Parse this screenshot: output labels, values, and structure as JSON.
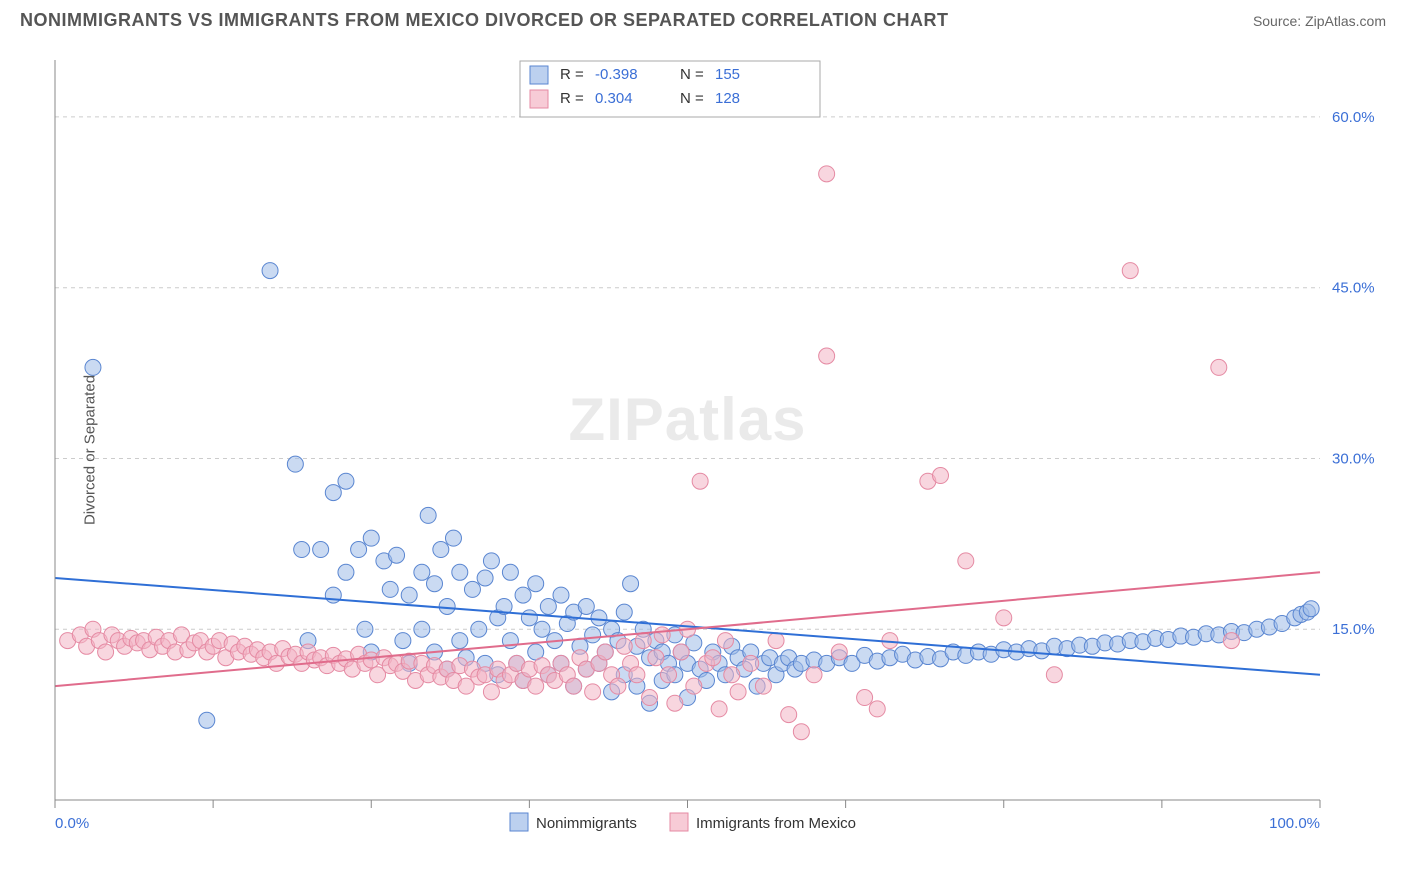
{
  "title": "NONIMMIGRANTS VS IMMIGRANTS FROM MEXICO DIVORCED OR SEPARATED CORRELATION CHART",
  "source_label": "Source:",
  "source_value": "ZipAtlas.com",
  "watermark": "ZIPatlas",
  "ylabel": "Divorced or Separated",
  "chart": {
    "type": "scatter",
    "background_color": "#ffffff",
    "grid_color": "#cccccc",
    "axis_color": "#888888",
    "xlim": [
      0,
      100
    ],
    "ylim": [
      0,
      65
    ],
    "y_ticks": [
      15,
      30,
      45,
      60
    ],
    "y_tick_labels": [
      "15.0%",
      "30.0%",
      "45.0%",
      "60.0%"
    ],
    "x_tick_left": "0.0%",
    "x_tick_right": "100.0%",
    "marker_radius": 8,
    "marker_opacity": 0.55,
    "line_width": 2,
    "series": [
      {
        "name": "Nonimmigrants",
        "fill": "#9fbce8",
        "stroke": "#5a86d1",
        "line_color": "#2f6fd6",
        "R": "-0.398",
        "N": "155",
        "trend": {
          "x1": 0,
          "y1": 19.5,
          "x2": 100,
          "y2": 11.0
        },
        "points": [
          [
            3,
            38
          ],
          [
            12,
            7
          ],
          [
            17,
            46.5
          ],
          [
            19,
            29.5
          ],
          [
            19.5,
            22
          ],
          [
            20,
            14
          ],
          [
            21,
            22
          ],
          [
            22,
            27
          ],
          [
            22,
            18
          ],
          [
            23,
            28
          ],
          [
            23,
            20
          ],
          [
            24,
            22
          ],
          [
            24.5,
            15
          ],
          [
            25,
            23
          ],
          [
            25,
            13
          ],
          [
            26,
            21
          ],
          [
            26.5,
            18.5
          ],
          [
            27,
            21.5
          ],
          [
            27.5,
            14
          ],
          [
            28,
            18
          ],
          [
            28,
            12
          ],
          [
            29,
            20
          ],
          [
            29,
            15
          ],
          [
            29.5,
            25
          ],
          [
            30,
            19
          ],
          [
            30,
            13
          ],
          [
            30.5,
            22
          ],
          [
            31,
            17
          ],
          [
            31,
            11.5
          ],
          [
            31.5,
            23
          ],
          [
            32,
            20
          ],
          [
            32,
            14
          ],
          [
            32.5,
            12.5
          ],
          [
            33,
            18.5
          ],
          [
            33.5,
            15
          ],
          [
            34,
            19.5
          ],
          [
            34,
            12
          ],
          [
            34.5,
            21
          ],
          [
            35,
            16
          ],
          [
            35,
            11
          ],
          [
            35.5,
            17
          ],
          [
            36,
            20
          ],
          [
            36,
            14
          ],
          [
            36.5,
            12
          ],
          [
            37,
            18
          ],
          [
            37,
            10.5
          ],
          [
            37.5,
            16
          ],
          [
            38,
            19
          ],
          [
            38,
            13
          ],
          [
            38.5,
            15
          ],
          [
            39,
            17
          ],
          [
            39,
            11
          ],
          [
            39.5,
            14
          ],
          [
            40,
            18
          ],
          [
            40,
            12
          ],
          [
            40.5,
            15.5
          ],
          [
            41,
            16.5
          ],
          [
            41,
            10
          ],
          [
            41.5,
            13.5
          ],
          [
            42,
            17
          ],
          [
            42,
            11.5
          ],
          [
            42.5,
            14.5
          ],
          [
            43,
            16
          ],
          [
            43,
            12
          ],
          [
            43.5,
            13
          ],
          [
            44,
            15
          ],
          [
            44,
            9.5
          ],
          [
            44.5,
            14
          ],
          [
            45,
            16.5
          ],
          [
            45,
            11
          ],
          [
            45.5,
            19
          ],
          [
            46,
            13.5
          ],
          [
            46,
            10
          ],
          [
            46.5,
            15
          ],
          [
            47,
            12.5
          ],
          [
            47,
            8.5
          ],
          [
            47.5,
            14
          ],
          [
            48,
            13
          ],
          [
            48,
            10.5
          ],
          [
            48.5,
            12
          ],
          [
            49,
            14.5
          ],
          [
            49,
            11
          ],
          [
            49.5,
            13
          ],
          [
            50,
            12
          ],
          [
            50,
            9
          ],
          [
            50.5,
            13.8
          ],
          [
            51,
            11.5
          ],
          [
            51.5,
            10.5
          ],
          [
            52,
            13
          ],
          [
            52.5,
            12
          ],
          [
            53,
            11
          ],
          [
            53.5,
            13.5
          ],
          [
            54,
            12.5
          ],
          [
            54.5,
            11.5
          ],
          [
            55,
            13
          ],
          [
            55.5,
            10
          ],
          [
            56,
            12
          ],
          [
            56.5,
            12.5
          ],
          [
            57,
            11
          ],
          [
            57.5,
            12
          ],
          [
            58,
            12.5
          ],
          [
            58.5,
            11.5
          ],
          [
            59,
            12
          ],
          [
            60,
            12.3
          ],
          [
            61,
            12
          ],
          [
            62,
            12.5
          ],
          [
            63,
            12
          ],
          [
            64,
            12.7
          ],
          [
            65,
            12.2
          ],
          [
            66,
            12.5
          ],
          [
            67,
            12.8
          ],
          [
            68,
            12.3
          ],
          [
            69,
            12.6
          ],
          [
            70,
            12.4
          ],
          [
            71,
            13
          ],
          [
            72,
            12.7
          ],
          [
            73,
            13
          ],
          [
            74,
            12.8
          ],
          [
            75,
            13.2
          ],
          [
            76,
            13
          ],
          [
            77,
            13.3
          ],
          [
            78,
            13.1
          ],
          [
            79,
            13.5
          ],
          [
            80,
            13.3
          ],
          [
            81,
            13.6
          ],
          [
            82,
            13.5
          ],
          [
            83,
            13.8
          ],
          [
            84,
            13.7
          ],
          [
            85,
            14
          ],
          [
            86,
            13.9
          ],
          [
            87,
            14.2
          ],
          [
            88,
            14.1
          ],
          [
            89,
            14.4
          ],
          [
            90,
            14.3
          ],
          [
            91,
            14.6
          ],
          [
            92,
            14.5
          ],
          [
            93,
            14.8
          ],
          [
            94,
            14.7
          ],
          [
            95,
            15
          ],
          [
            96,
            15.2
          ],
          [
            97,
            15.5
          ],
          [
            98,
            16
          ],
          [
            98.5,
            16.3
          ],
          [
            99,
            16.5
          ],
          [
            99.3,
            16.8
          ]
        ]
      },
      {
        "name": "Immigrants from Mexico",
        "fill": "#f3b5c5",
        "stroke": "#e58aa3",
        "line_color": "#e06c8c",
        "R": "0.304",
        "N": "128",
        "trend": {
          "x1": 0,
          "y1": 10.0,
          "x2": 100,
          "y2": 20.0
        },
        "points": [
          [
            1,
            14
          ],
          [
            2,
            14.5
          ],
          [
            2.5,
            13.5
          ],
          [
            3,
            15
          ],
          [
            3.5,
            14
          ],
          [
            4,
            13
          ],
          [
            4.5,
            14.5
          ],
          [
            5,
            14
          ],
          [
            5.5,
            13.5
          ],
          [
            6,
            14.2
          ],
          [
            6.5,
            13.8
          ],
          [
            7,
            14
          ],
          [
            7.5,
            13.2
          ],
          [
            8,
            14.3
          ],
          [
            8.5,
            13.5
          ],
          [
            9,
            14
          ],
          [
            9.5,
            13
          ],
          [
            10,
            14.5
          ],
          [
            10.5,
            13.2
          ],
          [
            11,
            13.8
          ],
          [
            11.5,
            14
          ],
          [
            12,
            13
          ],
          [
            12.5,
            13.5
          ],
          [
            13,
            14
          ],
          [
            13.5,
            12.5
          ],
          [
            14,
            13.7
          ],
          [
            14.5,
            13
          ],
          [
            15,
            13.5
          ],
          [
            15.5,
            12.8
          ],
          [
            16,
            13.2
          ],
          [
            16.5,
            12.5
          ],
          [
            17,
            13
          ],
          [
            17.5,
            12
          ],
          [
            18,
            13.3
          ],
          [
            18.5,
            12.6
          ],
          [
            19,
            12.8
          ],
          [
            19.5,
            12
          ],
          [
            20,
            13
          ],
          [
            20.5,
            12.3
          ],
          [
            21,
            12.5
          ],
          [
            21.5,
            11.8
          ],
          [
            22,
            12.7
          ],
          [
            22.5,
            12
          ],
          [
            23,
            12.4
          ],
          [
            23.5,
            11.5
          ],
          [
            24,
            12.8
          ],
          [
            24.5,
            12
          ],
          [
            25,
            12.3
          ],
          [
            25.5,
            11
          ],
          [
            26,
            12.5
          ],
          [
            26.5,
            11.8
          ],
          [
            27,
            12
          ],
          [
            27.5,
            11.3
          ],
          [
            28,
            12.2
          ],
          [
            28.5,
            10.5
          ],
          [
            29,
            12
          ],
          [
            29.5,
            11
          ],
          [
            30,
            11.8
          ],
          [
            30.5,
            10.8
          ],
          [
            31,
            11.5
          ],
          [
            31.5,
            10.5
          ],
          [
            32,
            11.8
          ],
          [
            32.5,
            10
          ],
          [
            33,
            11.5
          ],
          [
            33.5,
            10.8
          ],
          [
            34,
            11
          ],
          [
            34.5,
            9.5
          ],
          [
            35,
            11.5
          ],
          [
            35.5,
            10.5
          ],
          [
            36,
            11
          ],
          [
            36.5,
            12
          ],
          [
            37,
            10.5
          ],
          [
            37.5,
            11.5
          ],
          [
            38,
            10
          ],
          [
            38.5,
            11.8
          ],
          [
            39,
            11
          ],
          [
            39.5,
            10.5
          ],
          [
            40,
            12
          ],
          [
            40.5,
            11
          ],
          [
            41,
            10
          ],
          [
            41.5,
            12.5
          ],
          [
            42,
            11.5
          ],
          [
            42.5,
            9.5
          ],
          [
            43,
            12
          ],
          [
            43.5,
            13
          ],
          [
            44,
            11
          ],
          [
            44.5,
            10
          ],
          [
            45,
            13.5
          ],
          [
            45.5,
            12
          ],
          [
            46,
            11
          ],
          [
            46.5,
            14
          ],
          [
            47,
            9
          ],
          [
            47.5,
            12.5
          ],
          [
            48,
            14.5
          ],
          [
            48.5,
            11
          ],
          [
            49,
            8.5
          ],
          [
            49.5,
            13
          ],
          [
            50,
            15
          ],
          [
            50.5,
            10
          ],
          [
            51,
            28
          ],
          [
            51.5,
            12
          ],
          [
            52,
            12.5
          ],
          [
            52.5,
            8
          ],
          [
            53,
            14
          ],
          [
            53.5,
            11
          ],
          [
            54,
            9.5
          ],
          [
            55,
            12
          ],
          [
            56,
            10
          ],
          [
            57,
            14
          ],
          [
            58,
            7.5
          ],
          [
            59,
            6
          ],
          [
            60,
            11
          ],
          [
            61,
            39
          ],
          [
            61,
            55
          ],
          [
            62,
            13
          ],
          [
            64,
            9
          ],
          [
            65,
            8
          ],
          [
            66,
            14
          ],
          [
            69,
            28
          ],
          [
            70,
            28.5
          ],
          [
            72,
            21
          ],
          [
            75,
            16
          ],
          [
            79,
            11
          ],
          [
            85,
            46.5
          ],
          [
            92,
            38
          ],
          [
            93,
            14
          ]
        ]
      }
    ],
    "legend_top": {
      "cols": [
        "R =",
        "N ="
      ]
    },
    "bottom_legend": [
      "Nonimmigrants",
      "Immigrants from Mexico"
    ]
  }
}
